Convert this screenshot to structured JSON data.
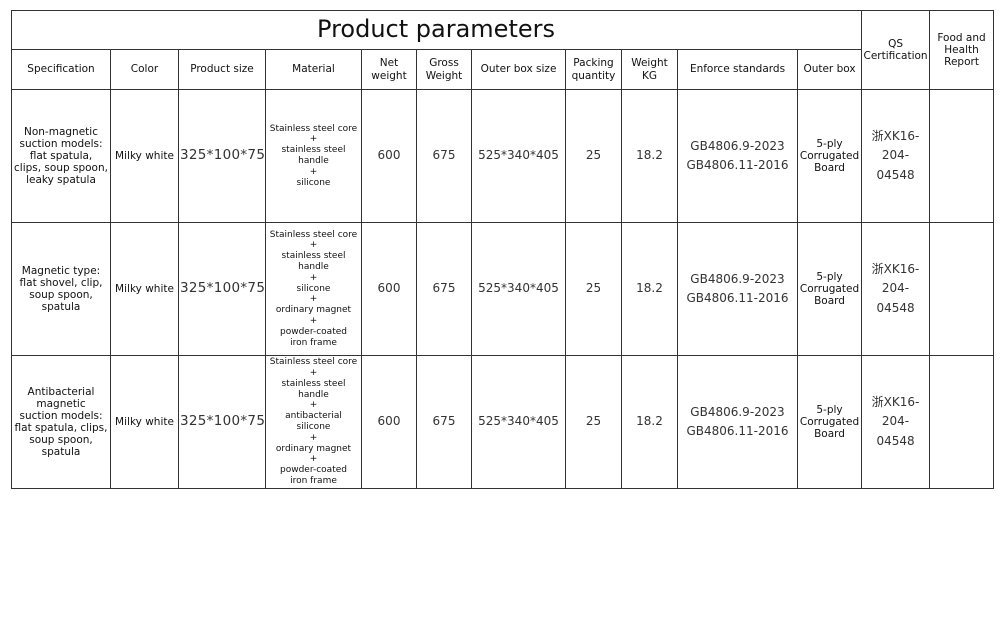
{
  "title": "Product parameters",
  "headers": {
    "specification": "Specification",
    "color": "Color",
    "product_size": "Product size",
    "material": "Material",
    "net_weight": "Net\nweight",
    "gross_weight": "Gross\nWeight",
    "outer_box_size": "Outer box size",
    "packing_quantity": "Packing\nquantity",
    "weight_kg": "Weight\nKG",
    "enforce_standards": "Enforce standards",
    "outer_box": "Outer box",
    "qs_certification": "QS\nCertification",
    "food_health_report": "Food and\nHealth\nReport"
  },
  "rows": [
    {
      "specification": "Non-magnetic\nsuction  models:\nflat spatula,\nclips, soup spoon,\nleaky spatula",
      "color": "Milky white",
      "product_size": "325*100*75",
      "material": "Stainless steel core\n+\nstainless steel\nhandle\n+\nsilicone",
      "net_weight": "600",
      "gross_weight": "675",
      "outer_box_size": "525*340*405",
      "packing_quantity": "25",
      "weight_kg": "18.2",
      "enforce_standards": "GB4806.9-2023\nGB4806.11-2016",
      "outer_box": "5-ply\nCorrugated\nBoard",
      "qs_certification": "浙XK16-\n204-04548",
      "food_health_report": ""
    },
    {
      "specification": "Magnetic type:\nflat shovel, clip,\nsoup spoon,\nspatula",
      "color": "Milky white",
      "product_size": "325*100*75",
      "material": "Stainless steel core\n+\nstainless steel\nhandle\n+\nsilicone\n+\nordinary magnet\n+\npowder-coated\niron frame",
      "net_weight": "600",
      "gross_weight": "675",
      "outer_box_size": "525*340*405",
      "packing_quantity": "25",
      "weight_kg": "18.2",
      "enforce_standards": "GB4806.9-2023\nGB4806.11-2016",
      "outer_box": "5-ply\nCorrugated\nBoard",
      "qs_certification": "浙XK16-\n204-04548",
      "food_health_report": ""
    },
    {
      "specification": "Antibacterial\nmagnetic\nsuction models:\nflat spatula, clips,\nsoup spoon, spatula",
      "color": "Milky white",
      "product_size": "325*100*75",
      "material": "Stainless steel core\n+\nstainless steel handle\n+\nantibacterial silicone\n+\nordinary magnet\n+\npowder-coated\niron frame",
      "net_weight": "600",
      "gross_weight": "675",
      "outer_box_size": "525*340*405",
      "packing_quantity": "25",
      "weight_kg": "18.2",
      "enforce_standards": "GB4806.9-2023\nGB4806.11-2016",
      "outer_box": "5-ply\nCorrugated\nBoard",
      "qs_certification": "浙XK16-\n204-04548",
      "food_health_report": ""
    }
  ]
}
